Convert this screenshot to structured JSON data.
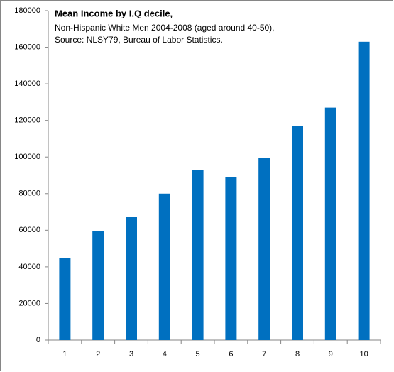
{
  "chart_data": {
    "type": "bar",
    "title": "Mean Income by I.Q decile,",
    "subtitle": [
      "Non-Hispanic White Men 2004-2008 (aged around 40-50),",
      "Source: NLSY79, Bureau of Labor Statistics."
    ],
    "categories": [
      "1",
      "2",
      "3",
      "4",
      "5",
      "6",
      "7",
      "8",
      "9",
      "10"
    ],
    "values": [
      45000,
      59500,
      67500,
      80000,
      93000,
      89000,
      99500,
      117000,
      127000,
      163000
    ],
    "color": "#0070c0",
    "ylim": [
      0,
      180000
    ],
    "yticks": [
      0,
      20000,
      40000,
      60000,
      80000,
      100000,
      120000,
      140000,
      160000,
      180000
    ],
    "grid": false
  }
}
